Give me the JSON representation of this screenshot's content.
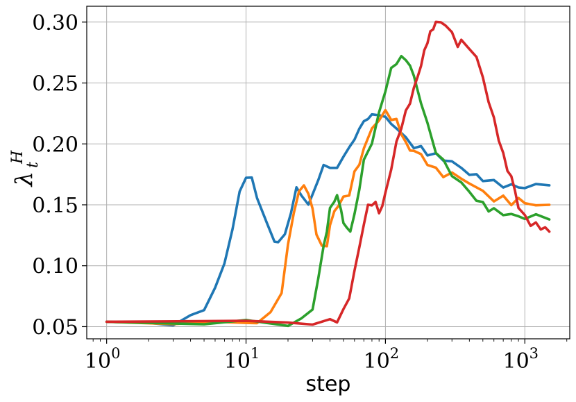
{
  "chart_data": {
    "type": "line",
    "xlabel": "step",
    "ylabel": "λ",
    "ylabel_superscript": "H",
    "ylabel_subscript": "t",
    "xscale": "log",
    "xlim": [
      0.72,
      2100
    ],
    "ylim": [
      0.04,
      0.313
    ],
    "grid": true,
    "x_ticks": [
      {
        "value": 1,
        "base": "10",
        "exp": "0"
      },
      {
        "value": 10,
        "base": "10",
        "exp": "1"
      },
      {
        "value": 100,
        "base": "10",
        "exp": "2"
      },
      {
        "value": 1000,
        "base": "10",
        "exp": "3"
      }
    ],
    "y_ticks": [
      {
        "value": 0.05,
        "label": "0.05"
      },
      {
        "value": 0.1,
        "label": "0.10"
      },
      {
        "value": 0.15,
        "label": "0.15"
      },
      {
        "value": 0.2,
        "label": "0.20"
      },
      {
        "value": 0.25,
        "label": "0.25"
      },
      {
        "value": 0.3,
        "label": "0.30"
      }
    ],
    "series": [
      {
        "color": "#1f77b4",
        "x": [
          1,
          2,
          3,
          4,
          5,
          6,
          7,
          8,
          9,
          10,
          11,
          12,
          14,
          16,
          17,
          19,
          21,
          23,
          25,
          28,
          30,
          33,
          36,
          40,
          45,
          50,
          55,
          60,
          65,
          70,
          75,
          80,
          90,
          100,
          110,
          120,
          140,
          160,
          180,
          200,
          230,
          260,
          300,
          350,
          400,
          450,
          500,
          600,
          700,
          800,
          900,
          1000,
          1200,
          1500
        ],
        "y": [
          0.054,
          0.052,
          0.053,
          0.057,
          0.066,
          0.08,
          0.103,
          0.13,
          0.16,
          0.174,
          0.17,
          0.158,
          0.134,
          0.121,
          0.119,
          0.125,
          0.145,
          0.162,
          0.16,
          0.148,
          0.16,
          0.17,
          0.182,
          0.182,
          0.178,
          0.192,
          0.195,
          0.205,
          0.212,
          0.218,
          0.222,
          0.222,
          0.226,
          0.22,
          0.218,
          0.212,
          0.205,
          0.198,
          0.196,
          0.193,
          0.19,
          0.188,
          0.185,
          0.18,
          0.176,
          0.173,
          0.172,
          0.168,
          0.166,
          0.166,
          0.164,
          0.165,
          0.165,
          0.166
        ]
      },
      {
        "color": "#ff7f0e",
        "x": [
          1,
          3,
          6,
          10,
          12,
          15,
          18,
          20,
          22,
          24,
          26,
          28,
          30,
          32,
          35,
          38,
          40,
          43,
          46,
          50,
          55,
          60,
          65,
          70,
          80,
          90,
          100,
          110,
          120,
          130,
          140,
          150,
          160,
          180,
          200,
          230,
          260,
          300,
          350,
          400,
          500,
          600,
          700,
          800,
          900,
          1000,
          1200,
          1500
        ],
        "y": [
          0.054,
          0.054,
          0.053,
          0.053,
          0.054,
          0.06,
          0.08,
          0.115,
          0.145,
          0.16,
          0.166,
          0.16,
          0.145,
          0.128,
          0.114,
          0.118,
          0.132,
          0.145,
          0.15,
          0.155,
          0.16,
          0.175,
          0.185,
          0.195,
          0.213,
          0.22,
          0.226,
          0.222,
          0.218,
          0.21,
          0.2,
          0.195,
          0.195,
          0.19,
          0.185,
          0.178,
          0.175,
          0.175,
          0.172,
          0.168,
          0.16,
          0.155,
          0.155,
          0.152,
          0.154,
          0.152,
          0.15,
          0.15
        ]
      },
      {
        "color": "#2ca02c",
        "x": [
          1,
          5,
          10,
          20,
          25,
          30,
          33,
          36,
          38,
          40,
          43,
          45,
          48,
          50,
          53,
          56,
          60,
          65,
          70,
          75,
          80,
          90,
          100,
          110,
          120,
          130,
          140,
          150,
          160,
          180,
          200,
          230,
          260,
          300,
          350,
          400,
          450,
          500,
          550,
          600,
          700,
          800,
          900,
          1000,
          1200,
          1500
        ],
        "y": [
          0.054,
          0.054,
          0.053,
          0.053,
          0.055,
          0.065,
          0.09,
          0.115,
          0.13,
          0.145,
          0.155,
          0.156,
          0.147,
          0.135,
          0.13,
          0.13,
          0.14,
          0.165,
          0.185,
          0.195,
          0.2,
          0.225,
          0.245,
          0.26,
          0.268,
          0.27,
          0.27,
          0.264,
          0.255,
          0.235,
          0.215,
          0.195,
          0.185,
          0.175,
          0.168,
          0.16,
          0.155,
          0.15,
          0.147,
          0.145,
          0.143,
          0.142,
          0.14,
          0.14,
          0.14,
          0.138
        ]
      },
      {
        "color": "#d62728",
        "x": [
          1,
          10,
          20,
          30,
          40,
          45,
          50,
          55,
          60,
          65,
          70,
          75,
          80,
          85,
          90,
          95,
          100,
          110,
          120,
          130,
          140,
          150,
          160,
          170,
          180,
          190,
          200,
          210,
          220,
          230,
          250,
          270,
          300,
          330,
          350,
          400,
          450,
          500,
          550,
          600,
          650,
          700,
          750,
          800,
          850,
          900,
          1000,
          1100,
          1200,
          1300,
          1400,
          1500
        ],
        "y": [
          0.054,
          0.054,
          0.053,
          0.053,
          0.054,
          0.056,
          0.062,
          0.075,
          0.095,
          0.115,
          0.135,
          0.148,
          0.152,
          0.15,
          0.145,
          0.148,
          0.16,
          0.18,
          0.2,
          0.215,
          0.225,
          0.235,
          0.245,
          0.255,
          0.265,
          0.275,
          0.285,
          0.29,
          0.296,
          0.299,
          0.3,
          0.298,
          0.29,
          0.282,
          0.283,
          0.28,
          0.27,
          0.255,
          0.235,
          0.22,
          0.205,
          0.19,
          0.18,
          0.172,
          0.162,
          0.148,
          0.14,
          0.135,
          0.133,
          0.132,
          0.13,
          0.128
        ]
      }
    ]
  }
}
